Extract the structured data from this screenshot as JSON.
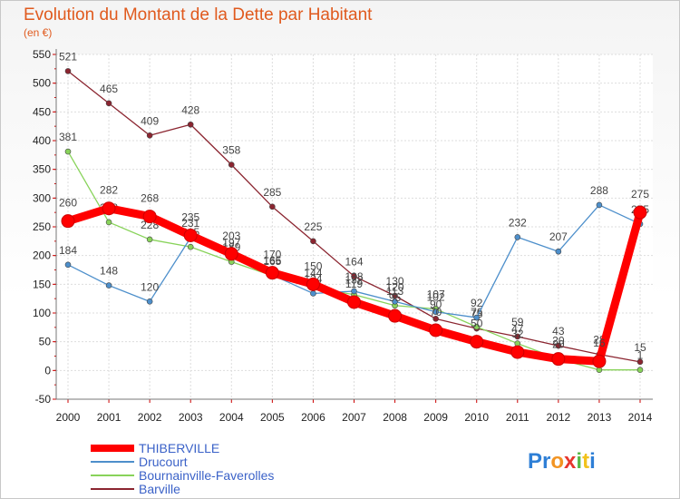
{
  "chart_data": {
    "type": "line",
    "title": "Evolution du Montant de la Dette par Habitant",
    "unit_label": "(en €)",
    "categories": [
      "2000",
      "2001",
      "2002",
      "2003",
      "2004",
      "2005",
      "2006",
      "2007",
      "2008",
      "2009",
      "2010",
      "2011",
      "2012",
      "2013",
      "2014"
    ],
    "ylim": [
      -50,
      550
    ],
    "yticks": [
      -50,
      0,
      50,
      100,
      150,
      200,
      250,
      300,
      350,
      400,
      450,
      500,
      550
    ],
    "grid": true,
    "legend_position": "bottom-left",
    "series": [
      {
        "name": "THIBERVILLE",
        "color": "#ff0000",
        "values": [
          260,
          282,
          268,
          235,
          203,
          170,
          150,
          119,
          95,
          70,
          50,
          32,
          20,
          16,
          275
        ],
        "labels": [
          "260",
          "282",
          "268",
          "235",
          "203",
          "170",
          "150",
          "119",
          "95",
          "70",
          "50",
          "32",
          "20",
          "16",
          "275"
        ]
      },
      {
        "name": "Drucourt",
        "color": "#4d8fcb",
        "values": [
          184,
          148,
          120,
          231,
          197,
          166,
          134,
          138,
          120,
          102,
          92,
          232,
          207,
          288,
          255
        ],
        "labels": [
          "184",
          "148",
          "120",
          "231",
          "197",
          "166",
          "134",
          "138",
          "120",
          "102",
          "92",
          "232",
          "207",
          "288",
          "255"
        ]
      },
      {
        "name": "Bournainville-Faverolles",
        "color": "#88d35a",
        "values": [
          381,
          258,
          228,
          215,
          189,
          165,
          144,
          132,
          113,
          107,
          76,
          47,
          20,
          1,
          1
        ],
        "labels": [
          "381",
          "258",
          "228",
          "215",
          "189",
          "165",
          "144",
          "132",
          "113",
          "107",
          "76",
          "47",
          "20",
          "1",
          "1"
        ]
      },
      {
        "name": "Barville",
        "color": "#8b2530",
        "values": [
          521,
          465,
          409,
          428,
          358,
          285,
          225,
          164,
          130,
          90,
          73,
          59,
          43,
          28,
          15
        ],
        "labels": [
          "521",
          "465",
          "409",
          "428",
          "358",
          "285",
          "225",
          "164",
          "130",
          "90",
          "73",
          "59",
          "43",
          "28",
          "15"
        ]
      }
    ]
  },
  "logo": {
    "text": "Proxiti"
  }
}
